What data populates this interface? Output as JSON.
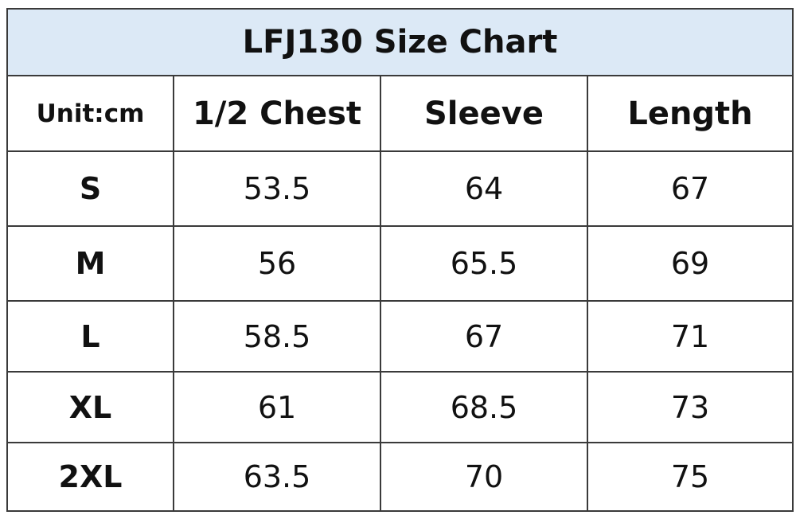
{
  "table": {
    "title": "LFJ130 Size Chart",
    "header": [
      "Unit:cm",
      "1/2 Chest",
      "Sleeve",
      "Length"
    ],
    "rows": [
      [
        "S",
        53.5,
        64,
        67
      ],
      [
        "M",
        56,
        65.5,
        69
      ],
      [
        "L",
        58.5,
        67,
        71
      ],
      [
        "XL",
        61,
        68.5,
        73
      ],
      [
        "2XL",
        63.5,
        70,
        75
      ]
    ]
  }
}
